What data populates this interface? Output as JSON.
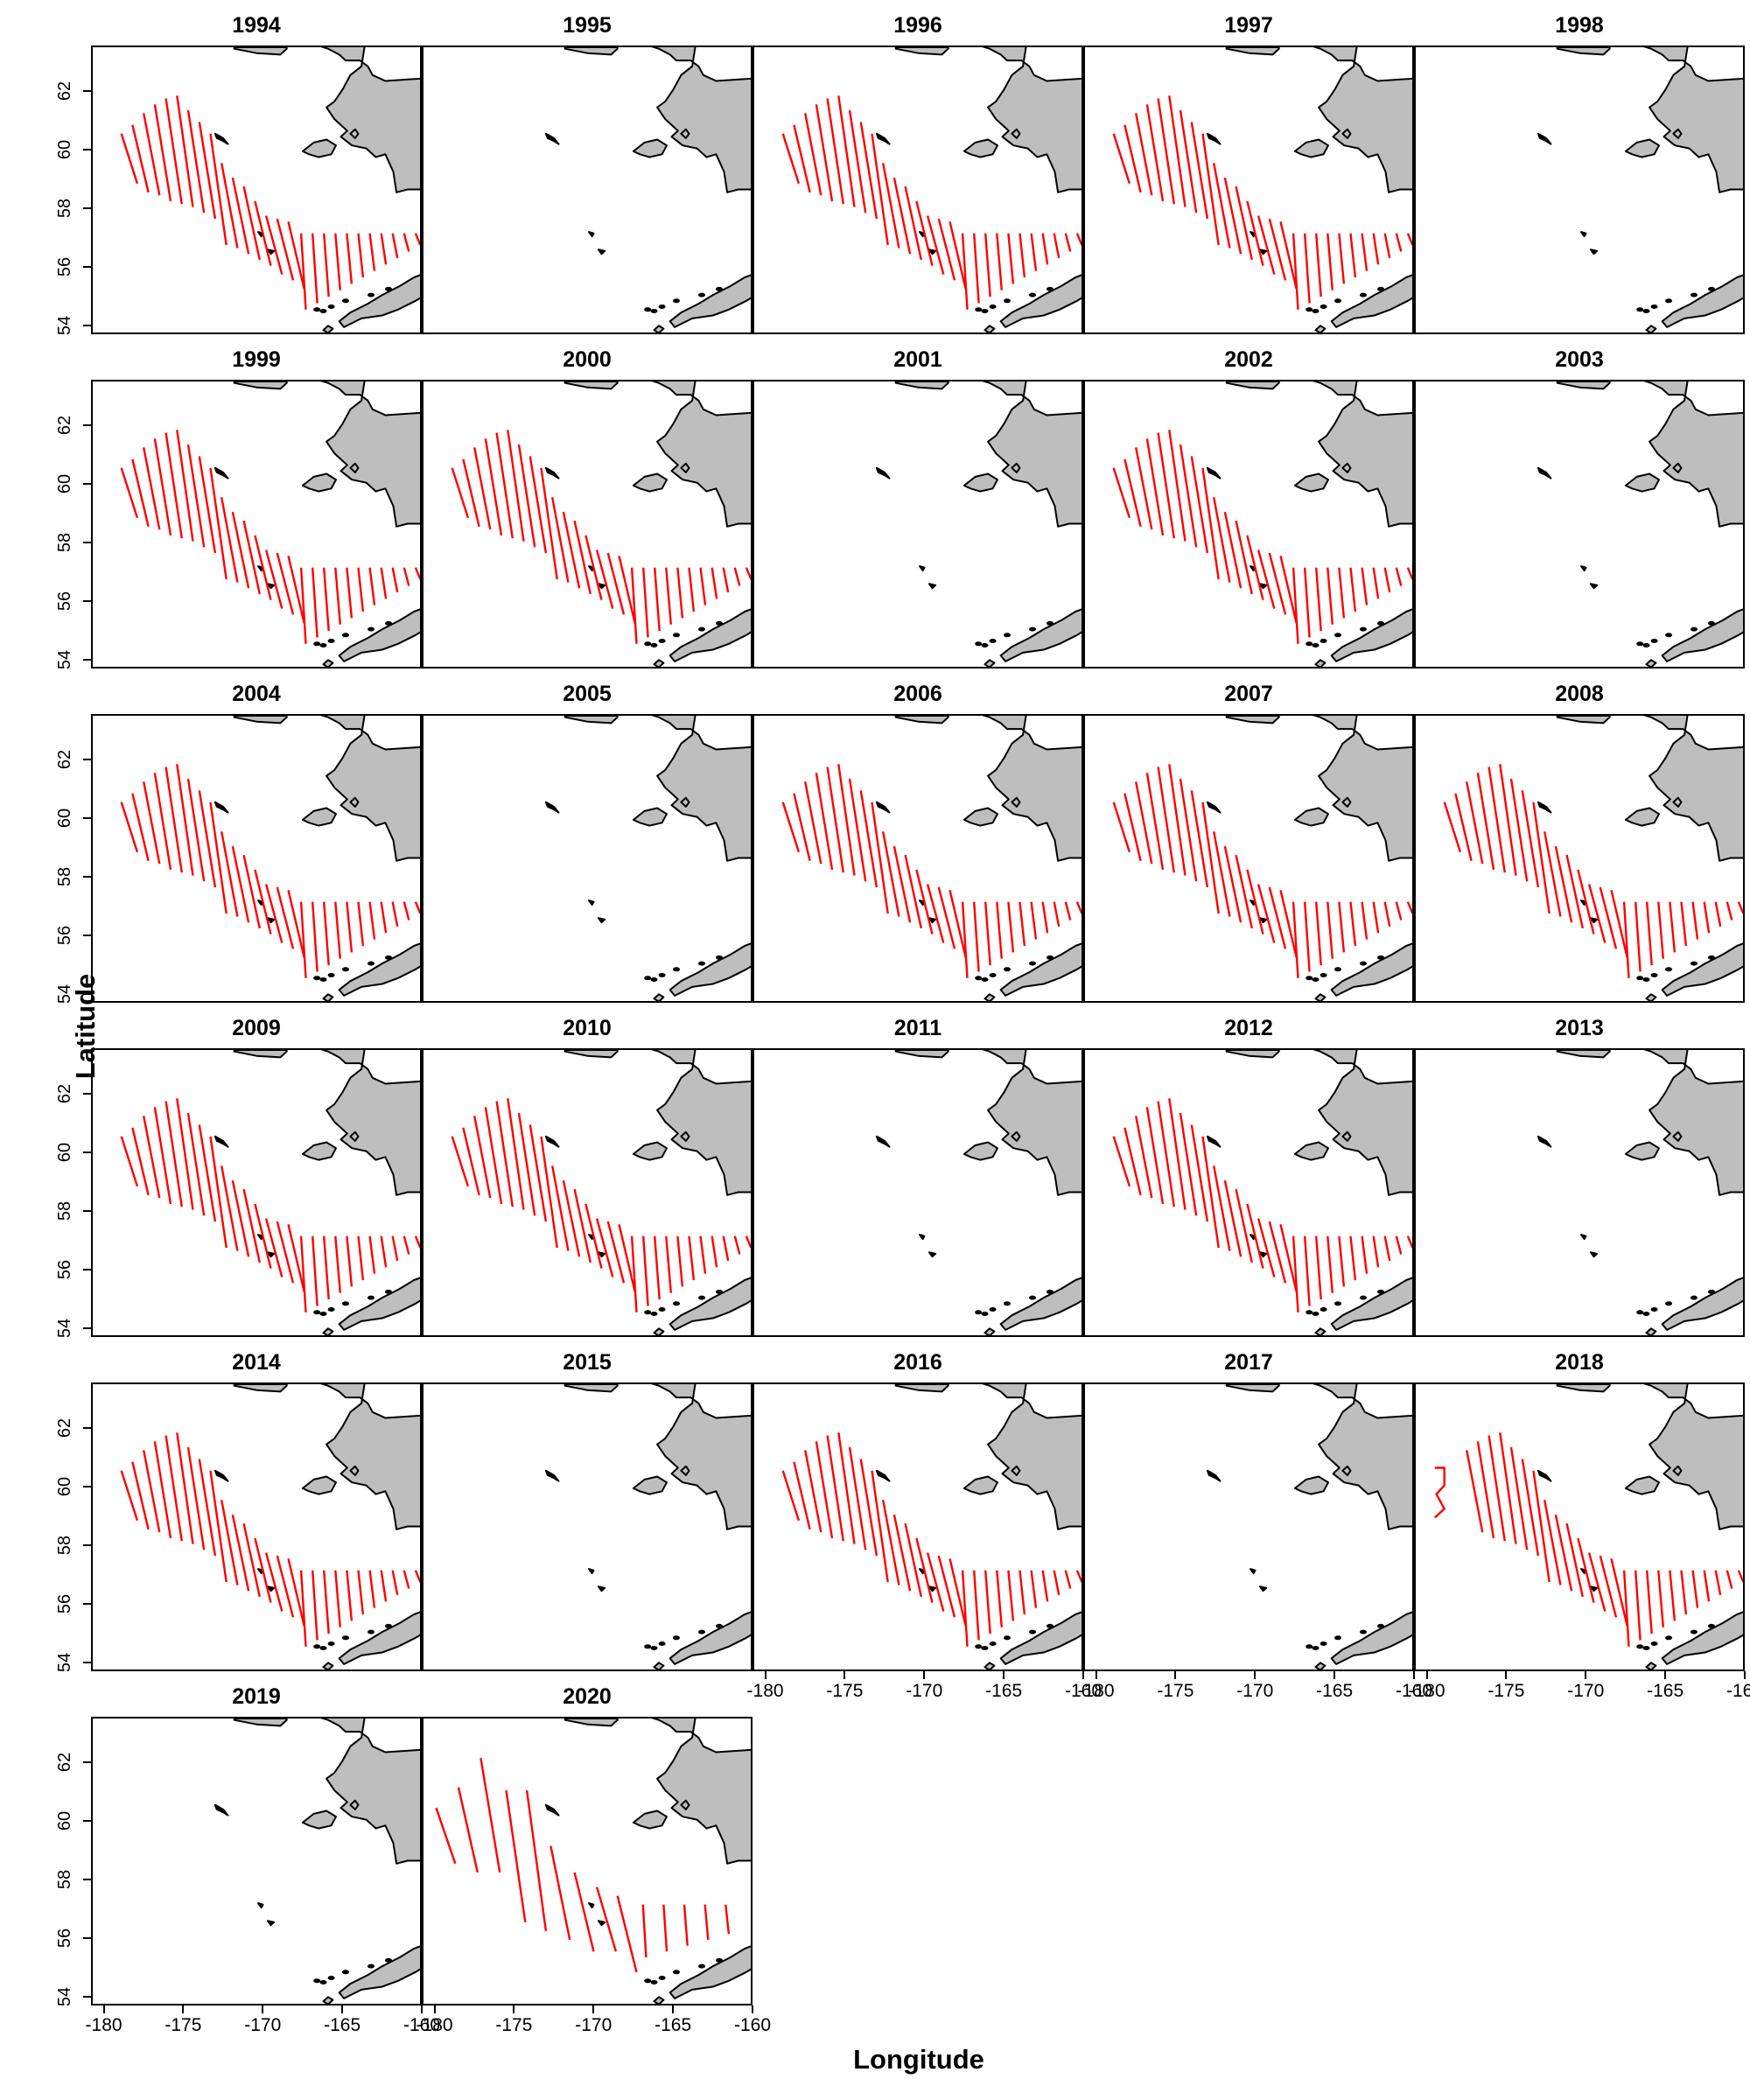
{
  "axes": {
    "xlabel": "Longitude",
    "ylabel": "Latitude",
    "lon_ticks": [
      -180,
      -175,
      -170,
      -165,
      -160
    ],
    "lon_tick_labels": [
      "-180",
      "-175",
      "-170",
      "-165",
      "-160"
    ],
    "lat_ticks": [
      54,
      56,
      58,
      60,
      62
    ],
    "lat_tick_labels": [
      "54",
      "56",
      "58",
      "60",
      "62"
    ],
    "lon_range": [
      -180,
      -160
    ],
    "lat_range": [
      53.8,
      63.5
    ]
  },
  "colors": {
    "transect": "#ff0000",
    "land": "#bebebe",
    "coast": "#000000"
  },
  "panels": [
    {
      "year": "1994",
      "surveyed": true,
      "pattern": "standard"
    },
    {
      "year": "1995",
      "surveyed": false
    },
    {
      "year": "1996",
      "surveyed": true,
      "pattern": "standard"
    },
    {
      "year": "1997",
      "surveyed": true,
      "pattern": "standard"
    },
    {
      "year": "1998",
      "surveyed": false
    },
    {
      "year": "1999",
      "surveyed": true,
      "pattern": "standard"
    },
    {
      "year": "2000",
      "surveyed": true,
      "pattern": "standard"
    },
    {
      "year": "2001",
      "surveyed": false
    },
    {
      "year": "2002",
      "surveyed": true,
      "pattern": "standard"
    },
    {
      "year": "2003",
      "surveyed": false
    },
    {
      "year": "2004",
      "surveyed": true,
      "pattern": "standard"
    },
    {
      "year": "2005",
      "surveyed": false
    },
    {
      "year": "2006",
      "surveyed": true,
      "pattern": "standard"
    },
    {
      "year": "2007",
      "surveyed": true,
      "pattern": "standard"
    },
    {
      "year": "2008",
      "surveyed": true,
      "pattern": "standard"
    },
    {
      "year": "2009",
      "surveyed": true,
      "pattern": "standard"
    },
    {
      "year": "2010",
      "surveyed": true,
      "pattern": "standard"
    },
    {
      "year": "2011",
      "surveyed": false
    },
    {
      "year": "2012",
      "surveyed": true,
      "pattern": "standard"
    },
    {
      "year": "2013",
      "surveyed": false
    },
    {
      "year": "2014",
      "surveyed": true,
      "pattern": "standard"
    },
    {
      "year": "2015",
      "surveyed": false
    },
    {
      "year": "2016",
      "surveyed": true,
      "pattern": "standard"
    },
    {
      "year": "2017",
      "surveyed": false
    },
    {
      "year": "2018",
      "surveyed": true,
      "pattern": "2018"
    },
    {
      "year": "2019",
      "surveyed": false
    },
    {
      "year": "2020",
      "surveyed": true,
      "pattern": "sparse"
    }
  ]
}
